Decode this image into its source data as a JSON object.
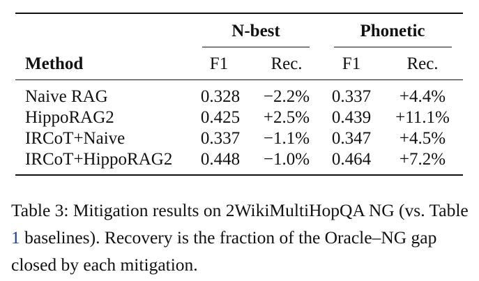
{
  "table": {
    "groups": [
      "N-best",
      "Phonetic"
    ],
    "method_header": "Method",
    "subheaders": [
      "F1",
      "Rec.",
      "F1",
      "Rec."
    ],
    "rows": [
      {
        "method": "Naive RAG",
        "nbest_f1": "0.328",
        "nbest_rec": "−2.2%",
        "phonetic_f1": "0.337",
        "phonetic_rec": "+4.4%"
      },
      {
        "method": "HippoRAG2",
        "nbest_f1": "0.425",
        "nbest_rec": "+2.5%",
        "phonetic_f1": "0.439",
        "phonetic_rec": "+11.1%"
      },
      {
        "method": "IRCoT+Naive",
        "nbest_f1": "0.337",
        "nbest_rec": "−1.1%",
        "phonetic_f1": "0.347",
        "phonetic_rec": "+4.5%"
      },
      {
        "method": "IRCoT+HippoRAG2",
        "nbest_f1": "0.448",
        "nbest_rec": "−1.0%",
        "phonetic_f1": "0.464",
        "phonetic_rec": "+7.2%"
      }
    ]
  },
  "caption": {
    "part1": "Table 3: Mitigation results on 2WikiMultiHopQA NG (vs. Table ",
    "ref": "1",
    "part2": " baselines). Recovery is the fraction of the Oracle–NG gap closed by each mitigation."
  }
}
